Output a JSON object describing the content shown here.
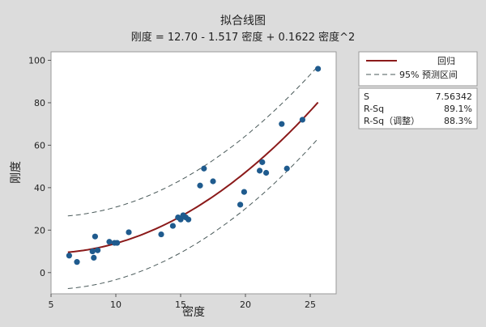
{
  "chart_data": {
    "type": "scatter",
    "title": "拟合线图",
    "subtitle": "刚度 = 12.70 - 1.517 密度 + 0.1622 密度^2",
    "xlabel": "密度",
    "ylabel": "刚度",
    "xlim": [
      5,
      27
    ],
    "ylim": [
      -10,
      104
    ],
    "xticks": [
      5,
      10,
      15,
      20,
      25
    ],
    "yticks": [
      0,
      20,
      40,
      60,
      80,
      100
    ],
    "grid": false,
    "legend_position": "right",
    "fit": {
      "intercept": 12.7,
      "b1": -1.517,
      "b2": 0.1622,
      "x_range": [
        6.3,
        25.6
      ]
    },
    "prediction_band": {
      "half_width": 17.1
    },
    "points": {
      "x": [
        6.4,
        7.0,
        8.2,
        8.3,
        8.4,
        8.6,
        9.5,
        9.9,
        10.1,
        11.0,
        13.5,
        14.4,
        14.8,
        15.0,
        15.2,
        15.4,
        15.6,
        16.5,
        16.8,
        17.5,
        19.6,
        19.9,
        21.1,
        21.3,
        21.6,
        22.8,
        23.2,
        24.4,
        25.6
      ],
      "y": [
        8.0,
        5.0,
        10.0,
        7.0,
        17.0,
        10.5,
        14.5,
        14.0,
        14.0,
        19.0,
        18.0,
        22.0,
        26.0,
        25.0,
        27.0,
        26.0,
        25.0,
        41.0,
        49.0,
        43.0,
        32.0,
        38.0,
        48.0,
        52.0,
        47.0,
        70.0,
        49.0,
        72.0,
        96.0
      ]
    },
    "colors": {
      "fit": "#8b1a1a",
      "band": "#4a5a5a",
      "points": "#1f5b8e"
    }
  },
  "legend": {
    "items": [
      {
        "label": "回归",
        "style": "solid",
        "color": "#8b1a1a"
      },
      {
        "label": "95% 预测区间",
        "style": "dashed",
        "color": "#4a5a5a"
      }
    ]
  },
  "stats": {
    "rows": [
      {
        "label": "S",
        "value": "7.56342"
      },
      {
        "label": "R-Sq",
        "value": "89.1%"
      },
      {
        "label": "R-Sq（调整）",
        "value": "88.3%"
      }
    ]
  }
}
